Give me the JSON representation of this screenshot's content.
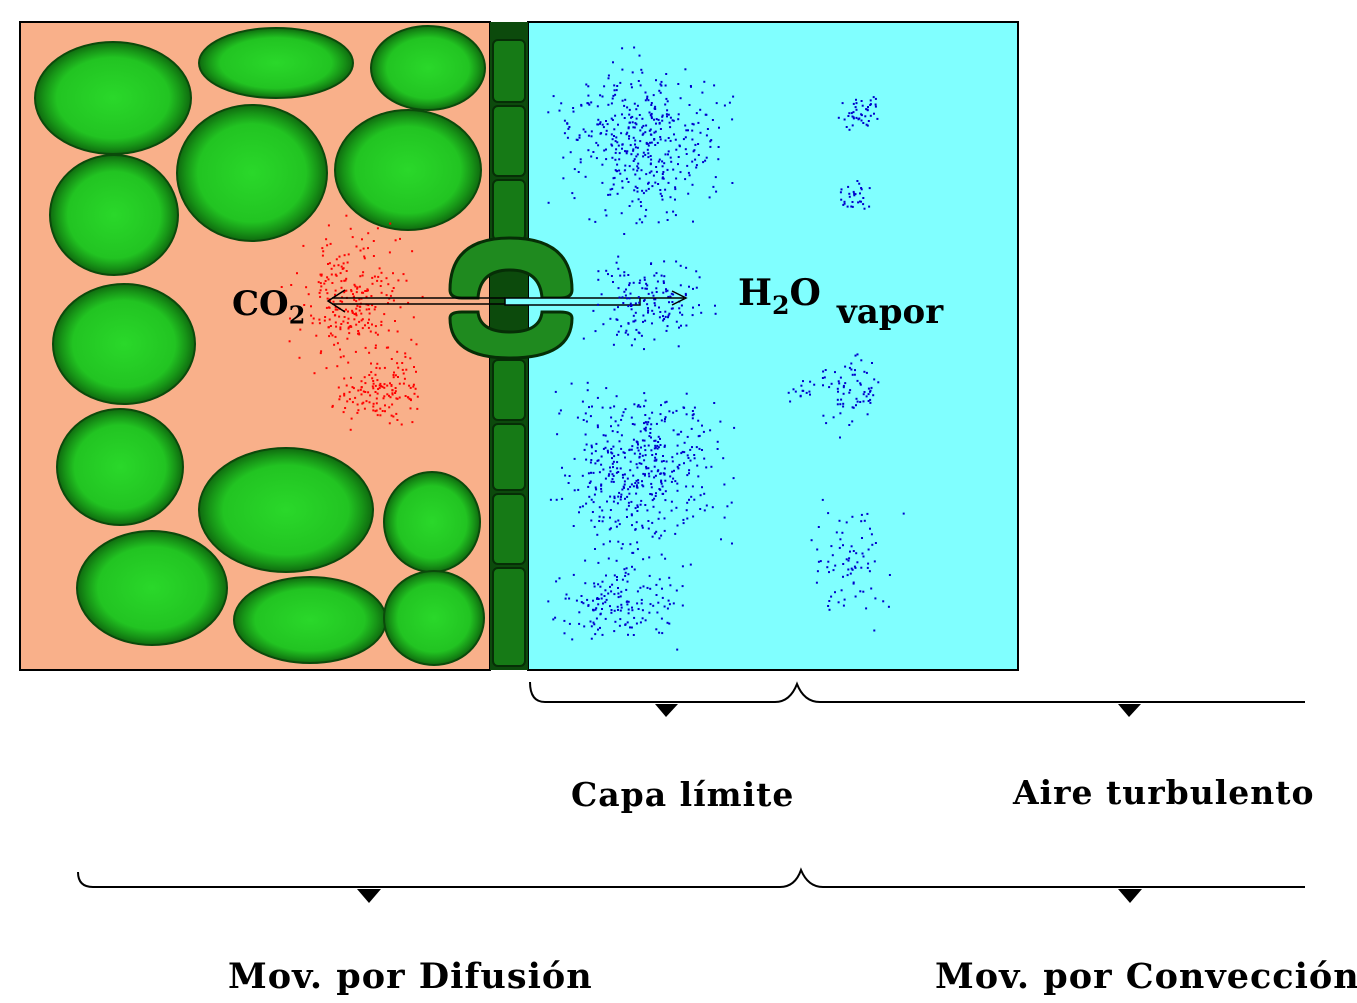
{
  "labels": {
    "co2_main": "CO",
    "co2_sub": "2",
    "h2o_h": "H",
    "h2o_sub": "2",
    "h2o_o": "O",
    "h2o_vapor": "vapor",
    "boundary_layer": "Capa límite",
    "turbulent_air": "Aire turbulento",
    "diffusion": "Mov. por Difusión",
    "convection": "Mov. por Convección"
  },
  "colors": {
    "leaf_interior": "#f9b08a",
    "air": "#80ffff",
    "cell_light": "#22cc22",
    "cell_dark": "#117711",
    "epidermis": "#0c4a0c",
    "co2_dots": "#ff0000",
    "h2o_dots": "#0000cc"
  }
}
